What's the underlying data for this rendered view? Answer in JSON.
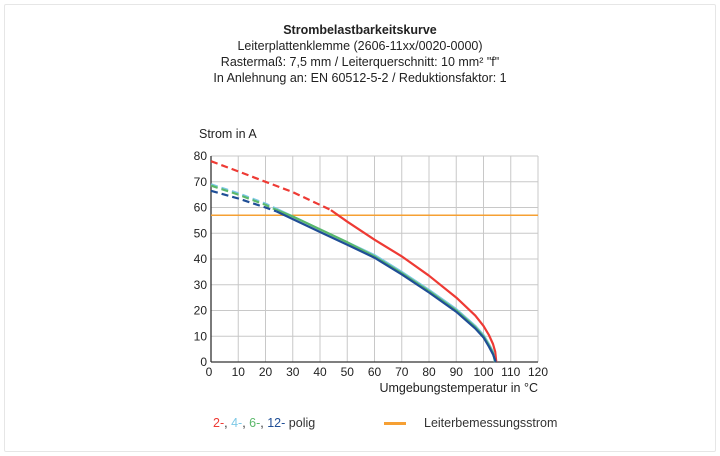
{
  "colors": {
    "red": "#ee3a34",
    "light_blue": "#7cc8e6",
    "green": "#5bb86a",
    "dark_blue": "#1f4e96",
    "orange": "#f6a033",
    "grid": "#c8c8c8",
    "axis": "#333333"
  },
  "legend": {
    "p2": "2-",
    "p4": "4-",
    "p6": "6-",
    "p12": "12-",
    "suffix": "polig",
    "rated": "Leiterbemessungsstrom"
  },
  "chart_data": {
    "type": "line",
    "title": "Strombelastbarkeitskurve",
    "subtitle_lines": [
      "Leiterplattenklemme (2606-11xx/0020-0000)",
      "Rastermaß: 7,5 mm / Leiterquerschnitt: 10 mm² \"f\"",
      "In Anlehnung an: EN 60512-5-2 / Reduktionsfaktor: 1"
    ],
    "xlabel": "Umgebungstemperatur in °C",
    "ylabel": "Strom in A",
    "xlim": [
      0,
      120
    ],
    "ylim": [
      0,
      80
    ],
    "xticks": [
      0,
      10,
      20,
      30,
      40,
      50,
      60,
      70,
      80,
      90,
      100,
      110,
      120
    ],
    "yticks": [
      0,
      10,
      20,
      30,
      40,
      50,
      60,
      70,
      80
    ],
    "grid": true,
    "rated_current": 57,
    "series": [
      {
        "name": "2-polig",
        "color_key": "red",
        "dashed": [
          [
            0,
            78
          ],
          [
            10,
            74
          ],
          [
            20,
            70
          ],
          [
            30,
            66
          ],
          [
            40,
            61
          ],
          [
            44,
            59
          ]
        ],
        "solid": [
          [
            44,
            59
          ],
          [
            50,
            54.5
          ],
          [
            60,
            47.5
          ],
          [
            70,
            41
          ],
          [
            80,
            33.5
          ],
          [
            90,
            25
          ],
          [
            97,
            18
          ],
          [
            100,
            14
          ],
          [
            102,
            10.5
          ],
          [
            103.5,
            7
          ],
          [
            104.3,
            4
          ],
          [
            104.7,
            0
          ]
        ]
      },
      {
        "name": "4-polig",
        "color_key": "light_blue",
        "dashed": [
          [
            0,
            69
          ],
          [
            10,
            65.5
          ],
          [
            20,
            61.5
          ],
          [
            24,
            59.5
          ]
        ],
        "solid": [
          [
            24,
            59.5
          ],
          [
            30,
            56.5
          ],
          [
            40,
            51.5
          ],
          [
            50,
            46.5
          ],
          [
            60,
            41.5
          ],
          [
            70,
            35
          ],
          [
            80,
            28
          ],
          [
            90,
            20.5
          ],
          [
            97,
            14
          ],
          [
            100,
            10.5
          ],
          [
            102,
            7
          ],
          [
            103.5,
            4
          ],
          [
            104.2,
            0
          ]
        ]
      },
      {
        "name": "6-polig",
        "color_key": "green",
        "dashed": [
          [
            0,
            68.5
          ],
          [
            10,
            65
          ],
          [
            20,
            61
          ],
          [
            23,
            59.5
          ]
        ],
        "solid": [
          [
            23,
            59.5
          ],
          [
            30,
            56.5
          ],
          [
            40,
            51.5
          ],
          [
            50,
            46.5
          ],
          [
            60,
            41
          ],
          [
            70,
            34.5
          ],
          [
            80,
            27.5
          ],
          [
            90,
            20
          ],
          [
            97,
            13.5
          ],
          [
            100,
            10
          ],
          [
            102,
            6.5
          ],
          [
            103.5,
            3.5
          ],
          [
            104.3,
            0
          ]
        ]
      },
      {
        "name": "12-polig",
        "color_key": "dark_blue",
        "dashed": [
          [
            0,
            66.5
          ],
          [
            10,
            63.5
          ],
          [
            20,
            60
          ],
          [
            24,
            58.5
          ]
        ],
        "solid": [
          [
            24,
            58.5
          ],
          [
            30,
            55.5
          ],
          [
            40,
            50.5
          ],
          [
            50,
            45.5
          ],
          [
            60,
            40.5
          ],
          [
            70,
            34
          ],
          [
            80,
            27
          ],
          [
            90,
            19.5
          ],
          [
            97,
            13
          ],
          [
            100,
            9.5
          ],
          [
            102,
            6
          ],
          [
            103.5,
            3
          ],
          [
            104.5,
            0
          ]
        ]
      }
    ]
  }
}
